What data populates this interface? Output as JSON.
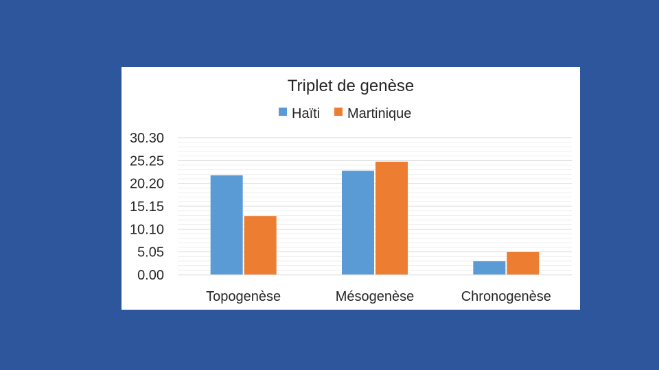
{
  "chart_data": {
    "type": "bar",
    "title": "Triplet de genèse",
    "categories": [
      "Topogenèse",
      "Mésogenèse",
      "Chronogenèse"
    ],
    "series": [
      {
        "name": "Haïti",
        "values": [
          22,
          23,
          3
        ],
        "color": "#5b9bd5"
      },
      {
        "name": "Martinique",
        "values": [
          13,
          25,
          5
        ],
        "color": "#ed7d31"
      }
    ],
    "yticks": [
      "0.00",
      "5.05",
      "10.10",
      "15.15",
      "20.20",
      "25.25",
      "30.30"
    ],
    "ylim": [
      0,
      30.3
    ],
    "xlabel": "",
    "ylabel": "",
    "grid": true,
    "legend_position": "top"
  }
}
